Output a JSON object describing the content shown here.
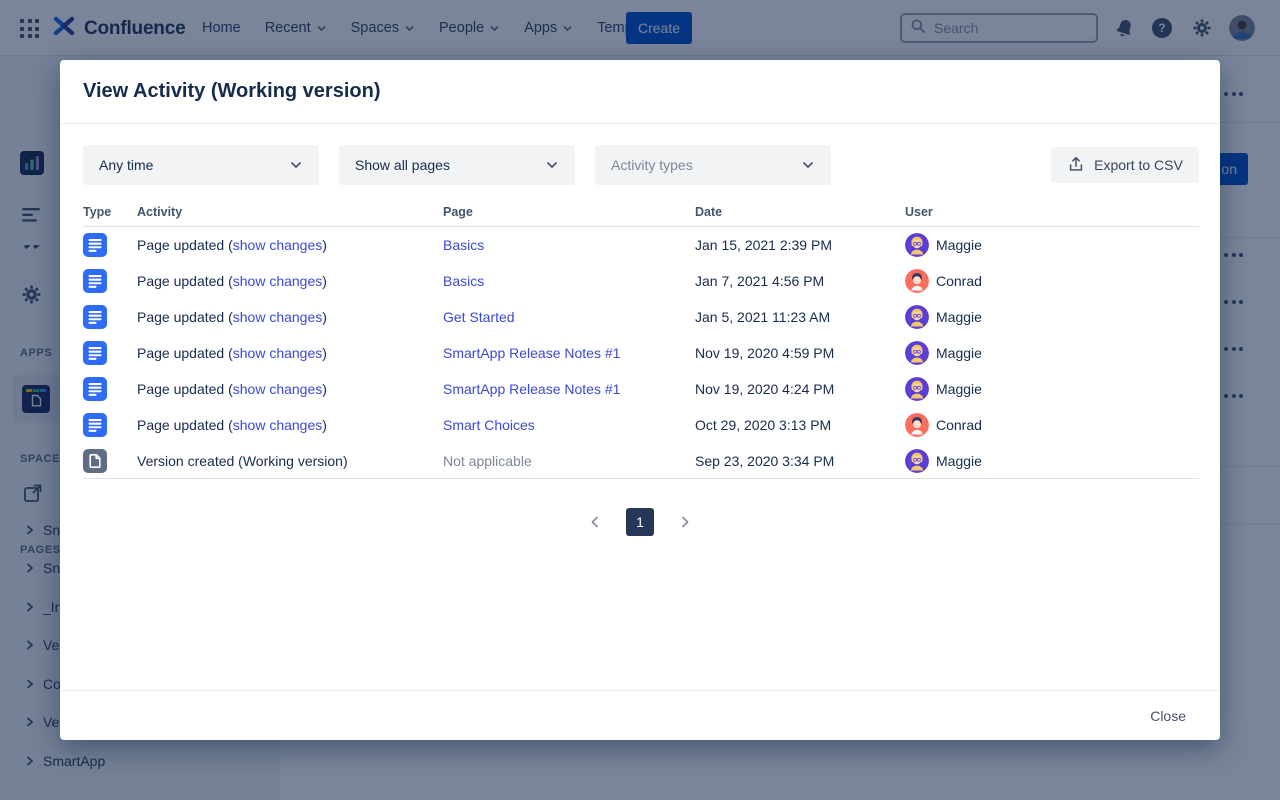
{
  "nav": {
    "logo_text": "Confluence",
    "menu": [
      {
        "label": "Home",
        "chevron": false
      },
      {
        "label": "Recent",
        "chevron": true
      },
      {
        "label": "Spaces",
        "chevron": true
      },
      {
        "label": "People",
        "chevron": true
      },
      {
        "label": "Apps",
        "chevron": true
      },
      {
        "label": "Templates",
        "chevron": false
      }
    ],
    "create_label": "Create",
    "search_placeholder": "Search"
  },
  "sidebar": {
    "apps_label": "APPS",
    "space_label": "SPACE S",
    "pages_label": "PAGES",
    "tree_items": [
      "Sn",
      "Sn",
      "_In",
      "Ve",
      "Co",
      "Ve",
      "SmartApp"
    ]
  },
  "background": {
    "partial_button_label": "on"
  },
  "modal": {
    "title": "View Activity (Working version)",
    "filters": [
      {
        "value": "Any time",
        "muted": false
      },
      {
        "value": "Show all pages",
        "muted": false
      },
      {
        "value": "Activity types",
        "muted": true
      }
    ],
    "export_label": "Export to CSV",
    "table": {
      "columns": [
        "Type",
        "Activity",
        "Page",
        "Date",
        "User"
      ],
      "rows": [
        {
          "icon": "page-icon",
          "activity_prefix": "Page updated (",
          "activity_link": "show changes",
          "activity_suffix": ")",
          "page": "Basics",
          "page_is_link": true,
          "date": "Jan 15, 2021 2:39 PM",
          "user": "Maggie",
          "avatar": "maggie-avatar"
        },
        {
          "icon": "page-icon",
          "activity_prefix": "Page updated (",
          "activity_link": "show changes",
          "activity_suffix": ")",
          "page": "Basics",
          "page_is_link": true,
          "date": "Jan 7, 2021 4:56 PM",
          "user": "Conrad",
          "avatar": "conrad-avatar"
        },
        {
          "icon": "page-icon",
          "activity_prefix": "Page updated (",
          "activity_link": "show changes",
          "activity_suffix": ")",
          "page": "Get Started",
          "page_is_link": true,
          "date": "Jan 5, 2021 11:23 AM",
          "user": "Maggie",
          "avatar": "maggie-avatar"
        },
        {
          "icon": "page-icon",
          "activity_prefix": "Page updated (",
          "activity_link": "show changes",
          "activity_suffix": ")",
          "page": "SmartApp Release Notes #1",
          "page_is_link": true,
          "date": "Nov 19, 2020 4:59 PM",
          "user": "Maggie",
          "avatar": "maggie-avatar"
        },
        {
          "icon": "page-icon",
          "activity_prefix": "Page updated (",
          "activity_link": "show changes",
          "activity_suffix": ")",
          "page": "SmartApp Release Notes #1",
          "page_is_link": true,
          "date": "Nov 19, 2020 4:24 PM",
          "user": "Maggie",
          "avatar": "maggie-avatar"
        },
        {
          "icon": "page-icon",
          "activity_prefix": "Page updated (",
          "activity_link": "show changes",
          "activity_suffix": ")",
          "page": "Smart Choices",
          "page_is_link": true,
          "date": "Oct 29, 2020 3:13 PM",
          "user": "Conrad",
          "avatar": "conrad-avatar"
        },
        {
          "icon": "version-icon",
          "activity_prefix": "Version created (Working version)",
          "activity_link": "",
          "activity_suffix": "",
          "page": "Not applicable",
          "page_is_link": false,
          "date": "Sep 23, 2020 3:34 PM",
          "user": "Maggie",
          "avatar": "maggie-avatar"
        }
      ]
    },
    "pagination": {
      "current": "1"
    },
    "close_label": "Close"
  },
  "colors": {
    "accent_blue": "#0052CC",
    "link_blue": "#3B49D6",
    "page_icon_blue": "#2E6BF6",
    "version_icon_grey": "#5E6C84",
    "pagination_navy": "#253858",
    "overlay": "rgba(9,30,66,0.54)",
    "maggie_avatar_bg": "#5C3DD6",
    "conrad_avatar_bg": "#FB6E5E"
  }
}
